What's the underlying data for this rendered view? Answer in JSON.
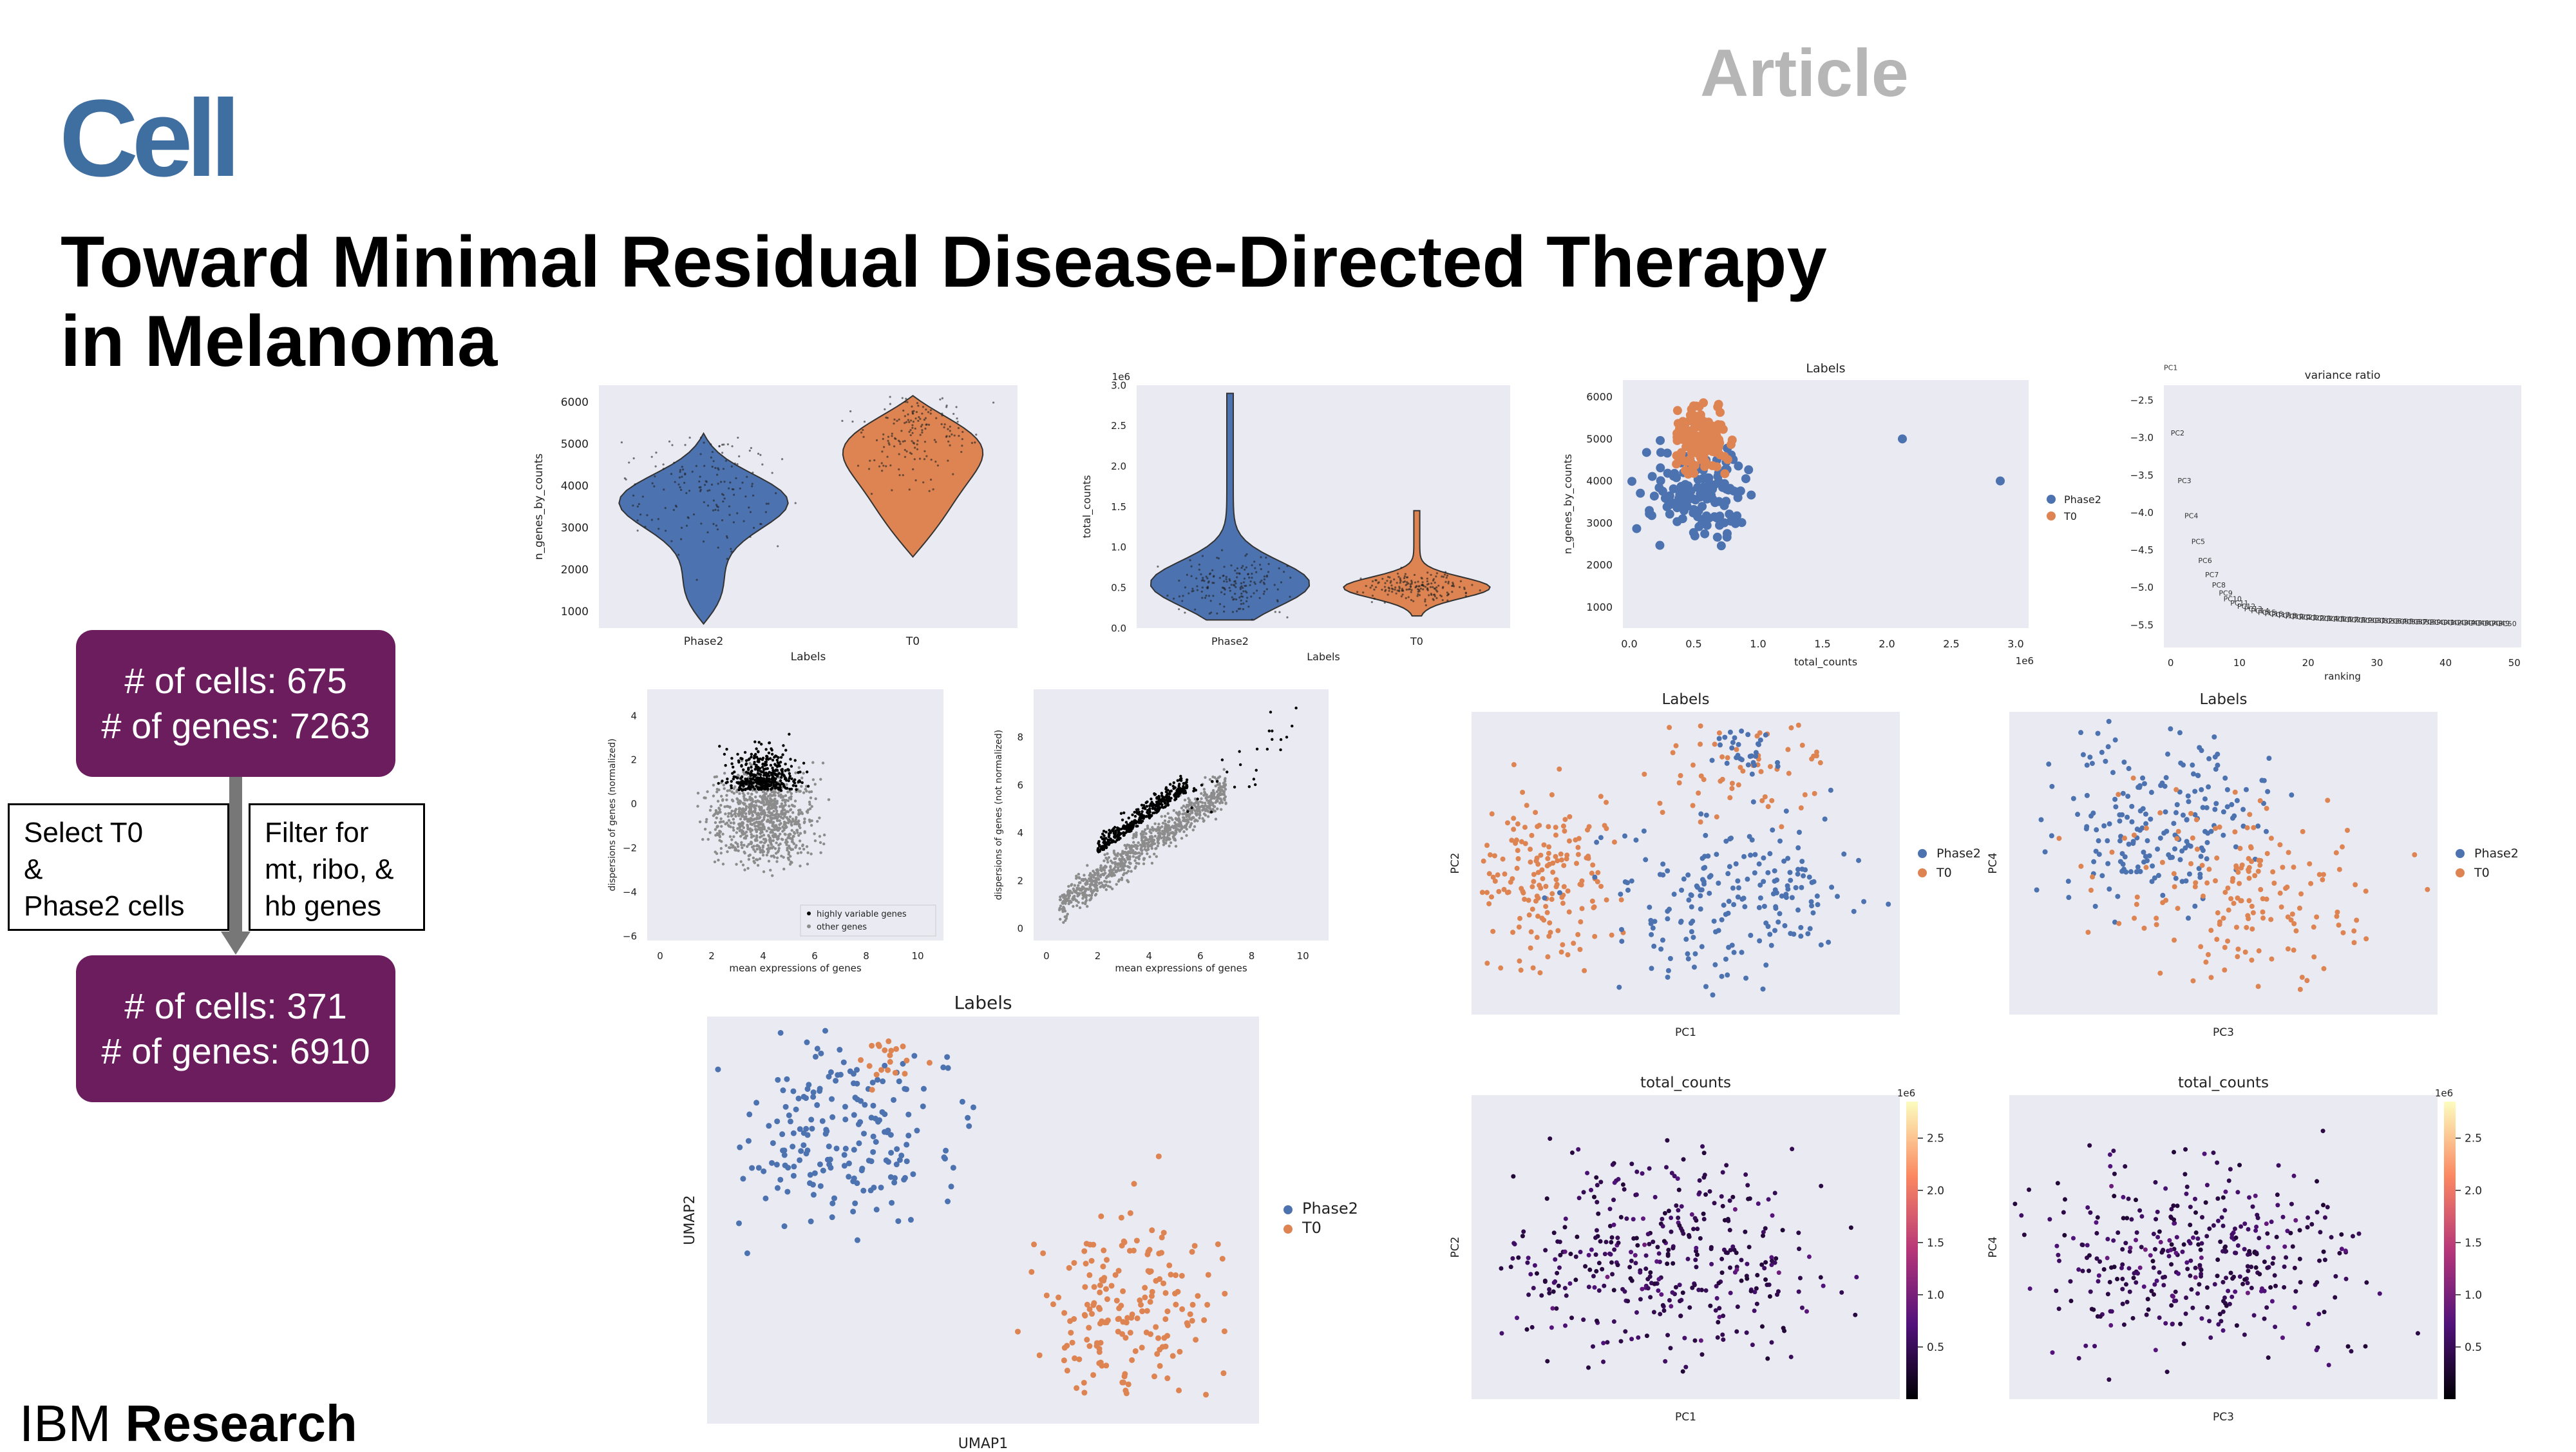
{
  "header": {
    "logo_text": "Cell",
    "article_label": "Article",
    "title_line1": "Toward Minimal Residual Disease-Directed Therapy",
    "title_line2": "in Melanoma",
    "footer_brand_light": "IBM",
    "footer_brand_bold": "Research"
  },
  "flow": {
    "box1_line1": "# of cells: 675",
    "box1_line2": "# of genes: 7263",
    "step1_line1": "Select T0",
    "step1_line2": "&",
    "step1_line3": "Phase2 cells",
    "step2_line1": "Filter for",
    "step2_line2": "mt, ribo, &",
    "step2_line3": "hb genes",
    "box2_line1": "# of cells: 371",
    "box2_line2": "# of genes: 6910",
    "box_color": "#6b1d5e"
  },
  "colors": {
    "phase2": "#4c72b0",
    "t0": "#dd8452",
    "panel_bg": "#eaeaf2"
  },
  "chart_data": [
    {
      "type": "violin",
      "title": "",
      "xlabel": "Labels",
      "ylabel": "n_genes_by_counts",
      "categories": [
        "Phase2",
        "T0"
      ],
      "yticks": [
        1000,
        2000,
        3000,
        4000,
        5000,
        6000
      ],
      "ylim": [
        600,
        6400
      ],
      "ranges": [
        [
          700,
          5250
        ],
        [
          2300,
          6150
        ]
      ],
      "medians": [
        3900,
        5300
      ]
    },
    {
      "type": "violin",
      "title": "",
      "xlabel": "Labels",
      "ylabel": "total_counts",
      "offset_label": "1e6",
      "categories": [
        "Phase2",
        "T0"
      ],
      "yticks": [
        0.0,
        0.5,
        1.0,
        1.5,
        2.0,
        2.5,
        3.0
      ],
      "ytick_labels": [
        "0.0",
        "0.5",
        "1.0",
        "1.5",
        "2.0",
        "2.5",
        "3.0"
      ],
      "ylim": [
        0,
        3.0
      ],
      "ranges": [
        [
          0.1,
          2.9
        ],
        [
          0.15,
          1.45
        ]
      ],
      "medians": [
        0.55,
        0.5
      ]
    },
    {
      "type": "scatter",
      "title": "Labels",
      "xlabel": "total_counts",
      "ylabel": "n_genes_by_counts",
      "offset_label": "1e6",
      "xticks": [
        0.0,
        0.5,
        1.0,
        1.5,
        2.0,
        2.5,
        3.0
      ],
      "xtick_labels": [
        "0.0",
        "0.5",
        "1.0",
        "1.5",
        "2.0",
        "2.5",
        "3.0"
      ],
      "yticks": [
        1000,
        2000,
        3000,
        4000,
        5000,
        6000
      ],
      "xlim": [
        -0.05,
        3.1
      ],
      "ylim": [
        500,
        6400
      ],
      "legend": [
        "Phase2",
        "T0"
      ],
      "legend_position": "right"
    },
    {
      "type": "scatter",
      "title": "variance ratio",
      "xlabel": "ranking",
      "ylabel": "",
      "xticks": [
        0,
        10,
        20,
        30,
        40,
        50
      ],
      "yticks": [
        -2.5,
        -3.0,
        -3.5,
        -4.0,
        -4.5,
        -5.0,
        -5.5
      ],
      "ytick_labels": [
        "−2.5",
        "−3.0",
        "−3.5",
        "−4.0",
        "−4.5",
        "−5.0",
        "−5.5"
      ],
      "xlim": [
        -1,
        51
      ],
      "ylim": [
        -5.8,
        -2.3
      ],
      "point_labels": [
        "PC1",
        "PC2",
        "PC3",
        "PC4",
        "PC5",
        "PC6"
      ]
    },
    {
      "type": "scatter",
      "title": "",
      "xlabel": "mean expressions of genes",
      "ylabel": "dispersions of genes (normalized)",
      "xticks": [
        0,
        2,
        4,
        6,
        8,
        10
      ],
      "yticks": [
        4,
        2,
        0,
        -2,
        -4,
        -6
      ],
      "ytick_labels": [
        "4",
        "2",
        "0",
        "−2",
        "−4",
        "−6"
      ],
      "xlim": [
        -0.5,
        11
      ],
      "ylim": [
        -6.2,
        5.2
      ],
      "legend": [
        "highly variable genes",
        "other genes"
      ],
      "legend_position": "lower right"
    },
    {
      "type": "scatter",
      "title": "",
      "xlabel": "mean expressions of genes",
      "ylabel": "dispersions of genes (not normalized)",
      "xticks": [
        0,
        2,
        4,
        6,
        8,
        10
      ],
      "yticks": [
        0,
        2,
        4,
        6,
        8
      ],
      "xlim": [
        -0.5,
        11
      ],
      "ylim": [
        -0.5,
        10
      ]
    },
    {
      "type": "scatter",
      "title": "Labels",
      "xlabel": "PC1",
      "ylabel": "PC2",
      "legend": [
        "Phase2",
        "T0"
      ],
      "legend_position": "right"
    },
    {
      "type": "scatter",
      "title": "Labels",
      "xlabel": "PC3",
      "ylabel": "PC4",
      "legend": [
        "Phase2",
        "T0"
      ],
      "legend_position": "right"
    },
    {
      "type": "scatter",
      "title": "Labels",
      "xlabel": "UMAP1",
      "ylabel": "UMAP2",
      "legend": [
        "Phase2",
        "T0"
      ],
      "legend_position": "right"
    },
    {
      "type": "scatter",
      "title": "total_counts",
      "xlabel": "PC1",
      "ylabel": "PC2",
      "colorbar_label": "1e6",
      "colorbar_ticks": [
        "0.5",
        "1.0",
        "1.5",
        "2.0",
        "2.5"
      ]
    },
    {
      "type": "scatter",
      "title": "total_counts",
      "xlabel": "PC3",
      "ylabel": "PC4",
      "colorbar_label": "1e6",
      "colorbar_ticks": [
        "0.5",
        "1.0",
        "1.5",
        "2.0",
        "2.5"
      ]
    }
  ]
}
